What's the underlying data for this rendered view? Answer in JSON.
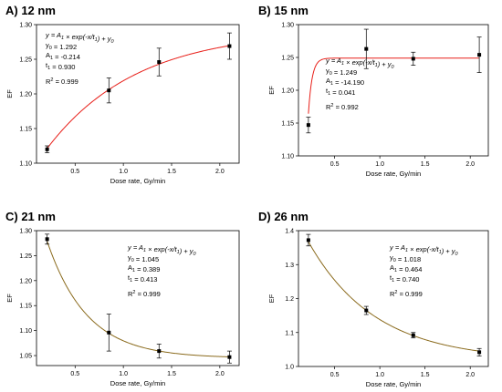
{
  "chart_data": [
    {
      "type": "scatter",
      "panel_title": "A) 12 nm",
      "xlabel": "Dose rate, Gy/min",
      "ylabel": "EF",
      "xlim": [
        0.1,
        2.2
      ],
      "ylim": [
        1.1,
        1.3
      ],
      "xticks": [
        "0.5",
        "1.0",
        "1.5",
        "2.0"
      ],
      "yticks": [
        "1.10",
        "1.15",
        "1.20",
        "1.25",
        "1.30"
      ],
      "fit_color": "#e8201a",
      "fit": {
        "y0": 1.292,
        "A1": -0.214,
        "t1": 0.93
      },
      "equation": "y = A1 × exp(-x/t1) + y0",
      "params": [
        "y0 = 1.292",
        "A1 = -0.214",
        "t1 = 0.930"
      ],
      "r2": "R2 = 0.999",
      "annotation_pos": "top-left",
      "series": [
        {
          "x": [
            0.21,
            0.85,
            1.37,
            2.1
          ],
          "y": [
            1.12,
            1.205,
            1.246,
            1.269
          ],
          "err": [
            0.005,
            0.018,
            0.02,
            0.019
          ]
        }
      ]
    },
    {
      "type": "scatter",
      "panel_title": "B) 15 nm",
      "xlabel": "Dose rate, Gy/min",
      "ylabel": "EF",
      "xlim": [
        0.1,
        2.2
      ],
      "ylim": [
        1.1,
        1.3
      ],
      "xticks": [
        "0.5",
        "1.0",
        "1.5",
        "2.0"
      ],
      "yticks": [
        "1.10",
        "1.15",
        "1.20",
        "1.25",
        "1.30"
      ],
      "fit_color": "#e8201a",
      "fit": {
        "y0": 1.249,
        "A1": -14.19,
        "t1": 0.041
      },
      "equation": "y = A1 × exp(-x/t1) + y0",
      "params": [
        "y0 = 1.249",
        "A1 = -14.190",
        "t1 = 0.041"
      ],
      "r2": "R2 = 0.992",
      "annotation_pos": "middle-left",
      "series": [
        {
          "x": [
            0.21,
            0.85,
            1.37,
            2.1
          ],
          "y": [
            1.147,
            1.263,
            1.248,
            1.254
          ],
          "err": [
            0.012,
            0.03,
            0.01,
            0.027
          ]
        }
      ]
    },
    {
      "type": "scatter",
      "panel_title": "C) 21 nm",
      "xlabel": "Dose rate, Gy/min",
      "ylabel": "EF",
      "xlim": [
        0.1,
        2.2
      ],
      "ylim": [
        1.03,
        1.3
      ],
      "xticks": [
        "0.5",
        "1.0",
        "1.5",
        "2.0"
      ],
      "yticks": [
        "1.05",
        "1.10",
        "1.15",
        "1.20",
        "1.25",
        "1.30"
      ],
      "fit_color": "#8a6a1c",
      "fit": {
        "y0": 1.045,
        "A1": 0.389,
        "t1": 0.413
      },
      "equation": "y = A1 × exp(-x/t1) + y0",
      "params": [
        "y0 = 1.045",
        "A1 = 0.389",
        "t1 = 0.413"
      ],
      "r2": "R2 = 0.999",
      "annotation_pos": "top-right",
      "series": [
        {
          "x": [
            0.21,
            0.85,
            1.37,
            2.1
          ],
          "y": [
            1.283,
            1.096,
            1.059,
            1.047
          ],
          "err": [
            0.01,
            0.037,
            0.014,
            0.012
          ]
        }
      ]
    },
    {
      "type": "scatter",
      "panel_title": "D) 26 nm",
      "xlabel": "Dose rate, Gy/min",
      "ylabel": "EF",
      "xlim": [
        0.1,
        2.2
      ],
      "ylim": [
        1.0,
        1.4
      ],
      "xticks": [
        "0.5",
        "1.0",
        "1.5",
        "2.0"
      ],
      "yticks": [
        "1.0",
        "1.1",
        "1.2",
        "1.3",
        "1.4"
      ],
      "fit_color": "#8a6a1c",
      "fit": {
        "y0": 1.018,
        "A1": 0.464,
        "t1": 0.74
      },
      "equation": "y = A1 × exp(-x/t1) + y0",
      "params": [
        "y0 = 1.018",
        "A1 = 0.464",
        "t1 = 0.740"
      ],
      "r2": "R2 = 0.999",
      "annotation_pos": "top-right",
      "series": [
        {
          "x": [
            0.21,
            0.85,
            1.37,
            2.1
          ],
          "y": [
            1.372,
            1.165,
            1.092,
            1.042
          ],
          "err": [
            0.017,
            0.012,
            0.008,
            0.011
          ]
        }
      ]
    }
  ]
}
